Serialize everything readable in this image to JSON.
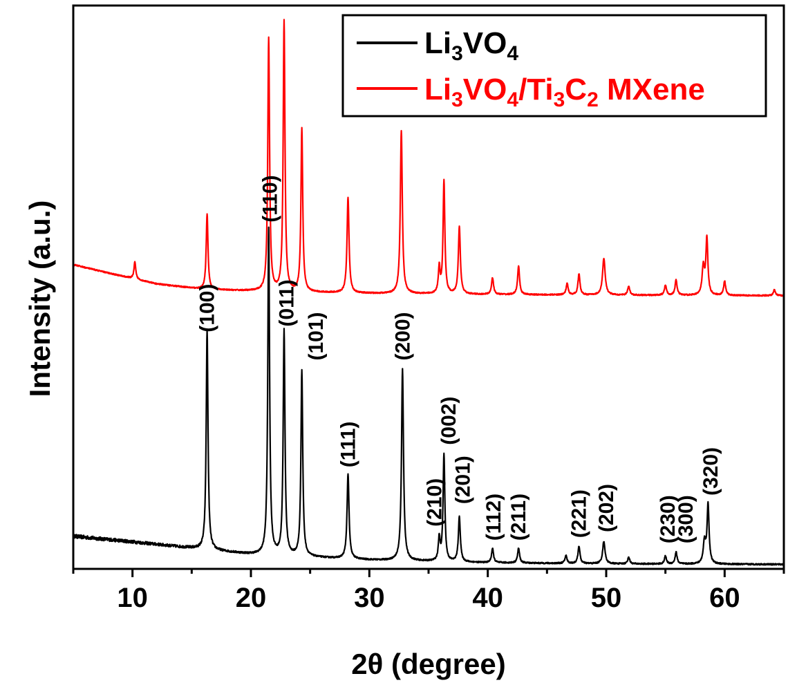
{
  "chart_data": {
    "type": "line",
    "xlabel": "2θ (degree)",
    "ylabel": "Intensity (a.u.)",
    "xlim": [
      5,
      65
    ],
    "ylim": [
      0,
      100
    ],
    "x_ticks": [
      10,
      20,
      30,
      40,
      50,
      60
    ],
    "y_ticks_shown": false,
    "grid": false,
    "legend_position": "top-right",
    "legend": [
      {
        "prefix": "Li",
        "sub1": "3",
        "mid": "VO",
        "sub2": "4",
        "rest": "",
        "color": "#000000"
      },
      {
        "prefix": "Li",
        "sub1": "3",
        "mid": "VO",
        "sub2": "4",
        "rest": "/Ti",
        "sub3": "3",
        "rest2": "C",
        "sub4": "2",
        "tail": " MXene",
        "color": "#ff0000"
      }
    ],
    "series": [
      {
        "name": "Li3VO4",
        "color": "#000000",
        "baseline": [
          [
            5,
            5.8
          ],
          [
            10,
            4.8
          ],
          [
            20,
            2.6
          ],
          [
            30,
            1.6
          ],
          [
            40,
            1.1
          ],
          [
            50,
            0.9
          ],
          [
            65,
            0.8
          ]
        ],
        "peaks": [
          {
            "x": 16.3,
            "h": 39.0,
            "w": 0.09
          },
          {
            "x": 21.5,
            "h": 58.0,
            "w": 0.09
          },
          {
            "x": 22.8,
            "h": 40.0,
            "w": 0.09
          },
          {
            "x": 24.3,
            "h": 33.0,
            "w": 0.09
          },
          {
            "x": 28.2,
            "h": 15.0,
            "w": 0.1
          },
          {
            "x": 32.8,
            "h": 34.0,
            "w": 0.1
          },
          {
            "x": 35.9,
            "h": 4.0,
            "w": 0.09
          },
          {
            "x": 36.3,
            "h": 19.0,
            "w": 0.09
          },
          {
            "x": 37.6,
            "h": 8.0,
            "w": 0.1
          },
          {
            "x": 40.4,
            "h": 2.5,
            "w": 0.1
          },
          {
            "x": 42.6,
            "h": 2.6,
            "w": 0.1
          },
          {
            "x": 46.6,
            "h": 1.4,
            "w": 0.1
          },
          {
            "x": 47.7,
            "h": 3.1,
            "w": 0.1
          },
          {
            "x": 49.8,
            "h": 4.0,
            "w": 0.12
          },
          {
            "x": 51.9,
            "h": 1.2,
            "w": 0.1
          },
          {
            "x": 55.0,
            "h": 1.4,
            "w": 0.1
          },
          {
            "x": 55.9,
            "h": 2.1,
            "w": 0.1
          },
          {
            "x": 58.3,
            "h": 4.0,
            "w": 0.12
          },
          {
            "x": 58.6,
            "h": 10.5,
            "w": 0.1
          }
        ]
      },
      {
        "name": "Li3VO4/Ti3C2 MXene",
        "color": "#ff0000",
        "baseline": [
          [
            5,
            54.0
          ],
          [
            8,
            52.5
          ],
          [
            12,
            50.6
          ],
          [
            16,
            49.6
          ],
          [
            22,
            49.2
          ],
          [
            30,
            48.9
          ],
          [
            40,
            48.7
          ],
          [
            50,
            48.6
          ],
          [
            65,
            48.5
          ]
        ],
        "peaks": [
          {
            "x": 10.2,
            "h": 3.0,
            "w": 0.09
          },
          {
            "x": 16.3,
            "h": 13.5,
            "w": 0.09
          },
          {
            "x": 21.5,
            "h": 45.0,
            "w": 0.09
          },
          {
            "x": 22.8,
            "h": 48.0,
            "w": 0.09
          },
          {
            "x": 24.3,
            "h": 29.0,
            "w": 0.09
          },
          {
            "x": 28.2,
            "h": 17.0,
            "w": 0.1
          },
          {
            "x": 32.7,
            "h": 29.0,
            "w": 0.1
          },
          {
            "x": 35.9,
            "h": 4.5,
            "w": 0.09
          },
          {
            "x": 36.3,
            "h": 20.0,
            "w": 0.09
          },
          {
            "x": 37.6,
            "h": 12.0,
            "w": 0.1
          },
          {
            "x": 40.4,
            "h": 3.0,
            "w": 0.1
          },
          {
            "x": 42.6,
            "h": 5.0,
            "w": 0.1
          },
          {
            "x": 46.7,
            "h": 2.0,
            "w": 0.1
          },
          {
            "x": 47.7,
            "h": 3.7,
            "w": 0.1
          },
          {
            "x": 49.8,
            "h": 6.5,
            "w": 0.13
          },
          {
            "x": 51.9,
            "h": 1.6,
            "w": 0.1
          },
          {
            "x": 55.0,
            "h": 1.8,
            "w": 0.1
          },
          {
            "x": 55.9,
            "h": 2.7,
            "w": 0.1
          },
          {
            "x": 58.2,
            "h": 5.0,
            "w": 0.12
          },
          {
            "x": 58.5,
            "h": 10.0,
            "w": 0.1
          },
          {
            "x": 60.0,
            "h": 2.5,
            "w": 0.1
          },
          {
            "x": 64.2,
            "h": 1.0,
            "w": 0.1
          }
        ]
      }
    ],
    "annotations": [
      {
        "text": "(100)",
        "x": 16.3,
        "y": 42.0
      },
      {
        "text": "(110)",
        "x": 21.6,
        "y": 61.5
      },
      {
        "text": "(011)",
        "x": 23.0,
        "y": 43.0
      },
      {
        "text": "(101)",
        "x": 25.5,
        "y": 37.0
      },
      {
        "text": "(111)",
        "x": 28.2,
        "y": 18.0
      },
      {
        "text": "(200)",
        "x": 32.8,
        "y": 37.0
      },
      {
        "text": "(210)",
        "x": 35.5,
        "y": 7.5
      },
      {
        "text": "(002)",
        "x": 36.7,
        "y": 22.0
      },
      {
        "text": "(201)",
        "x": 37.9,
        "y": 11.5
      },
      {
        "text": "(112)",
        "x": 40.5,
        "y": 5.0
      },
      {
        "text": "(211)",
        "x": 42.6,
        "y": 5.0
      },
      {
        "text": "(221)",
        "x": 47.7,
        "y": 5.5
      },
      {
        "text": "(202)",
        "x": 50.0,
        "y": 6.5
      },
      {
        "text": "(230)",
        "x": 55.2,
        "y": 4.5
      },
      {
        "text": "(300)",
        "x": 56.7,
        "y": 4.5
      },
      {
        "text": "(320)",
        "x": 58.8,
        "y": 13.0
      }
    ]
  }
}
